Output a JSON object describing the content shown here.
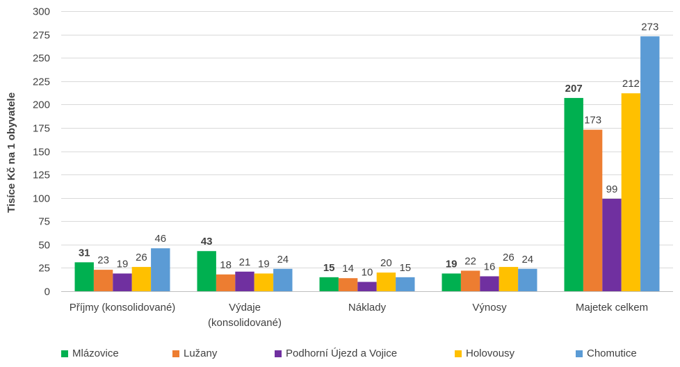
{
  "chart_data": {
    "type": "bar",
    "title": "",
    "xlabel": "",
    "ylabel": "Tisíce Kč na 1 obyvatele",
    "ylim": [
      0,
      300
    ],
    "yticks": [
      0,
      25,
      50,
      75,
      100,
      125,
      150,
      175,
      200,
      225,
      250,
      275,
      300
    ],
    "grid": true,
    "legend_position": "bottom",
    "categories": [
      [
        "Příjmy (konsolidované)"
      ],
      [
        "Výdaje",
        "(konsolidované)"
      ],
      [
        "Náklady"
      ],
      [
        "Výnosy"
      ],
      [
        "Majetek celkem"
      ]
    ],
    "series": [
      {
        "name": "Mlázovice",
        "color": "#00b050",
        "bold_labels": true,
        "values": [
          31,
          43,
          15,
          19,
          207
        ]
      },
      {
        "name": "Lužany",
        "color": "#ed7d31",
        "bold_labels": false,
        "values": [
          23,
          18,
          14,
          22,
          173
        ]
      },
      {
        "name": "Podhorní Újezd a Vojice",
        "color": "#7030a0",
        "bold_labels": false,
        "values": [
          19,
          21,
          10,
          16,
          99
        ]
      },
      {
        "name": "Holovousy",
        "color": "#ffc000",
        "bold_labels": false,
        "values": [
          26,
          19,
          20,
          26,
          212
        ]
      },
      {
        "name": "Chomutice",
        "color": "#5b9bd5",
        "bold_labels": false,
        "values": [
          46,
          24,
          15,
          24,
          273
        ]
      }
    ]
  }
}
